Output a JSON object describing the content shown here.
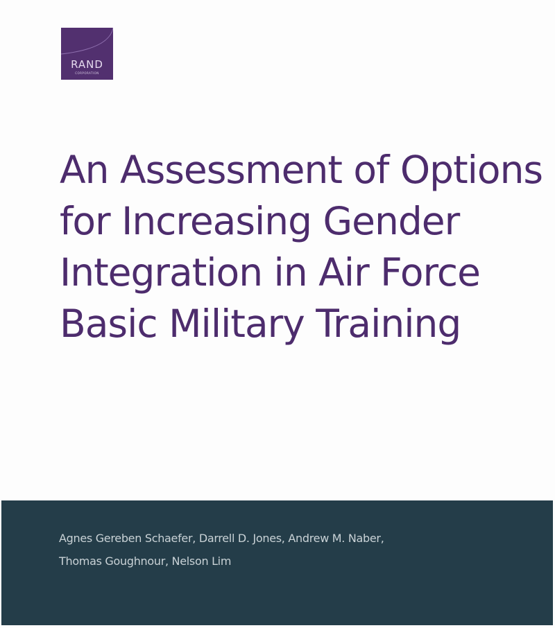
{
  "logo": {
    "name": "RAND",
    "subtitle": "CORPORATION",
    "color": "#52306f"
  },
  "title": {
    "lines": [
      "An Assessment of Options",
      "for Increasing Gender",
      "Integration in Air Force",
      "Basic Military Training"
    ],
    "color": "#4d2c6d"
  },
  "authors": {
    "lines": [
      "Agnes Gereben Schaefer, Darrell D. Jones, Andrew M. Naber,",
      "Thomas Goughnour, Nelson Lim"
    ],
    "band_color": "#243d49"
  }
}
